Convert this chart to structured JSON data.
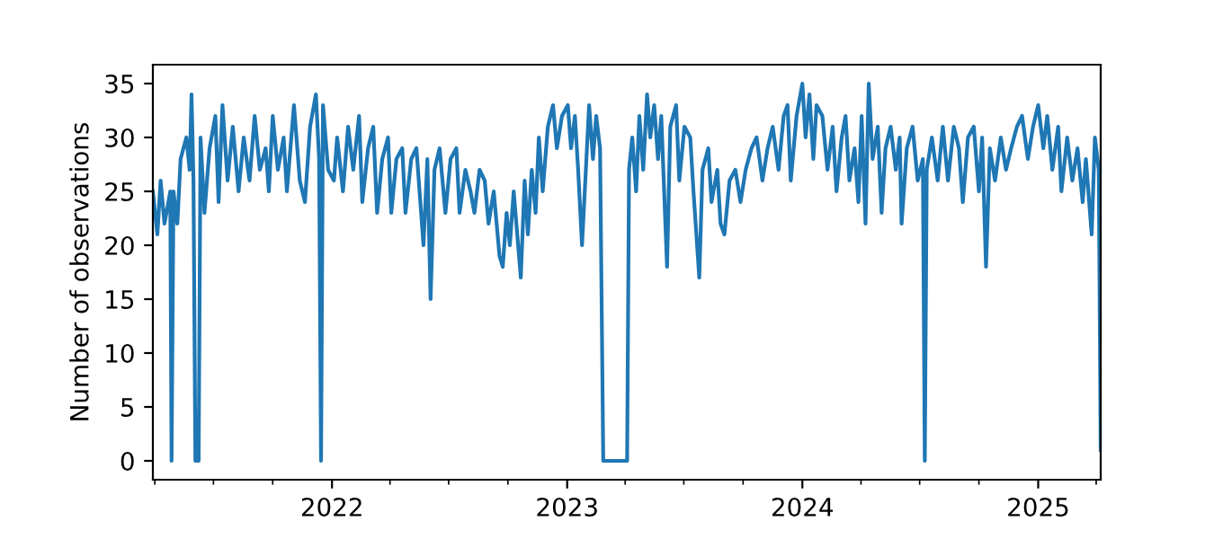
{
  "chart_data": {
    "type": "line",
    "ylabel": "Number of observations",
    "x": [
      "2021-03-29",
      "2021-04-05",
      "2021-04-10",
      "2021-04-16",
      "2021-04-25",
      "2021-04-27",
      "2021-04-30",
      "2021-05-06",
      "2021-05-11",
      "2021-05-20",
      "2021-05-25",
      "2021-05-28",
      "2021-05-31",
      "2021-06-03",
      "2021-06-08",
      "2021-06-11",
      "2021-06-17",
      "2021-06-25",
      "2021-07-04",
      "2021-07-09",
      "2021-07-15",
      "2021-07-23",
      "2021-07-31",
      "2021-08-09",
      "2021-08-17",
      "2021-08-26",
      "2021-09-03",
      "2021-09-11",
      "2021-09-20",
      "2021-09-25",
      "2021-10-01",
      "2021-10-09",
      "2021-10-18",
      "2021-10-23",
      "2021-11-03",
      "2021-11-12",
      "2021-11-20",
      "2021-11-28",
      "2021-12-07",
      "2021-12-12",
      "2021-12-15",
      "2021-12-18",
      "2021-12-26",
      "2022-01-04",
      "2022-01-09",
      "2022-01-18",
      "2022-01-26",
      "2022-02-03",
      "2022-02-12",
      "2022-02-17",
      "2022-02-26",
      "2022-03-06",
      "2022-03-12",
      "2022-03-20",
      "2022-03-29",
      "2022-04-03",
      "2022-04-11",
      "2022-04-20",
      "2022-04-25",
      "2022-05-04",
      "2022-05-12",
      "2022-05-23",
      "2022-05-29",
      "2022-06-03",
      "2022-06-09",
      "2022-06-17",
      "2022-06-26",
      "2022-07-04",
      "2022-07-13",
      "2022-07-18",
      "2022-07-27",
      "2022-08-04",
      "2022-08-10",
      "2022-08-18",
      "2022-08-26",
      "2022-09-01",
      "2022-09-09",
      "2022-09-18",
      "2022-09-23",
      "2022-09-29",
      "2022-10-04",
      "2022-10-10",
      "2022-10-21",
      "2022-10-27",
      "2022-11-01",
      "2022-11-07",
      "2022-11-13",
      "2022-11-18",
      "2022-11-24",
      "2022-12-02",
      "2022-12-10",
      "2022-12-16",
      "2022-12-24",
      "2023-01-02",
      "2023-01-07",
      "2023-01-13",
      "2023-01-18",
      "2023-01-24",
      "2023-01-30",
      "2023-02-04",
      "2023-02-10",
      "2023-02-15",
      "2023-02-21",
      "2023-02-26",
      "2023-04-04",
      "2023-04-07",
      "2023-04-12",
      "2023-04-18",
      "2023-04-23",
      "2023-04-29",
      "2023-05-05",
      "2023-05-10",
      "2023-05-16",
      "2023-05-22",
      "2023-05-27",
      "2023-06-05",
      "2023-06-10",
      "2023-06-19",
      "2023-06-24",
      "2023-07-02",
      "2023-07-11",
      "2023-07-16",
      "2023-07-25",
      "2023-07-30",
      "2023-08-08",
      "2023-08-13",
      "2023-08-22",
      "2023-08-27",
      "2023-09-02",
      "2023-09-10",
      "2023-09-19",
      "2023-09-27",
      "2023-10-05",
      "2023-10-14",
      "2023-10-22",
      "2023-10-31",
      "2023-11-08",
      "2023-11-16",
      "2023-11-25",
      "2023-12-03",
      "2023-12-09",
      "2023-12-14",
      "2023-12-23",
      "2024-01-01",
      "2024-01-06",
      "2024-01-12",
      "2024-01-18",
      "2024-01-23",
      "2024-02-01",
      "2024-02-09",
      "2024-02-17",
      "2024-02-23",
      "2024-03-02",
      "2024-03-08",
      "2024-03-14",
      "2024-03-22",
      "2024-03-28",
      "2024-04-02",
      "2024-04-08",
      "2024-04-13",
      "2024-04-19",
      "2024-04-27",
      "2024-05-03",
      "2024-05-09",
      "2024-05-17",
      "2024-05-25",
      "2024-05-31",
      "2024-06-03",
      "2024-06-11",
      "2024-06-20",
      "2024-06-28",
      "2024-07-06",
      "2024-07-09",
      "2024-07-12",
      "2024-07-20",
      "2024-07-29",
      "2024-08-06",
      "2024-08-14",
      "2024-08-23",
      "2024-08-31",
      "2024-09-06",
      "2024-09-14",
      "2024-09-23",
      "2024-10-01",
      "2024-10-06",
      "2024-10-12",
      "2024-10-18",
      "2024-10-26",
      "2024-11-04",
      "2024-11-12",
      "2024-11-20",
      "2024-11-29",
      "2024-12-07",
      "2024-12-16",
      "2024-12-24",
      "2025-01-01",
      "2025-01-09",
      "2025-01-15",
      "2025-01-23",
      "2025-02-01",
      "2025-02-06",
      "2025-02-15",
      "2025-02-23",
      "2025-03-03",
      "2025-03-11",
      "2025-03-16",
      "2025-03-25",
      "2025-03-30",
      "2025-04-05",
      "2025-04-08"
    ],
    "series": [
      {
        "color": "#1f77b4",
        "values": [
          25,
          21,
          26,
          22,
          25,
          0,
          25,
          22,
          28,
          30,
          27,
          34,
          26,
          0,
          0,
          30,
          23,
          29,
          32,
          24,
          33,
          26,
          31,
          25,
          30,
          26,
          32,
          27,
          29,
          25,
          32,
          27,
          30,
          25,
          33,
          26,
          24,
          31,
          34,
          28,
          0,
          33,
          27,
          26,
          30,
          25,
          31,
          27,
          32,
          24,
          29,
          31,
          23,
          28,
          30,
          23,
          28,
          29,
          23,
          28,
          29,
          20,
          28,
          15,
          27,
          29,
          23,
          28,
          29,
          23,
          27,
          25,
          23,
          27,
          26,
          22,
          25,
          19,
          18,
          23,
          20,
          25,
          17,
          26,
          21,
          27,
          23,
          30,
          25,
          31,
          33,
          29,
          32,
          33,
          29,
          32,
          27,
          20,
          27,
          33,
          28,
          32,
          29,
          0,
          0,
          27,
          30,
          25,
          32,
          27,
          34,
          30,
          33,
          28,
          32,
          18,
          31,
          33,
          26,
          31,
          30,
          25,
          17,
          27,
          29,
          24,
          27,
          22,
          21,
          26,
          27,
          24,
          27,
          29,
          30,
          26,
          29,
          31,
          27,
          32,
          33,
          26,
          32,
          35,
          30,
          34,
          28,
          33,
          32,
          27,
          31,
          25,
          30,
          32,
          26,
          29,
          24,
          32,
          22,
          35,
          28,
          31,
          23,
          29,
          31,
          27,
          30,
          22,
          29,
          31,
          26,
          28,
          0,
          27,
          30,
          26,
          31,
          26,
          31,
          29,
          24,
          30,
          31,
          25,
          30,
          18,
          29,
          26,
          30,
          27,
          29,
          31,
          32,
          28,
          31,
          33,
          29,
          32,
          27,
          31,
          25,
          30,
          26,
          29,
          24,
          28,
          21,
          30,
          27,
          1
        ]
      }
    ],
    "xlim": [
      "2021-03-29",
      "2025-04-08"
    ],
    "xticks": [
      {
        "value": "2021-04-01",
        "label": null
      },
      {
        "value": "2021-07-01",
        "label": null
      },
      {
        "value": "2021-10-01",
        "label": null
      },
      {
        "value": "2022-01-01",
        "label": "2022"
      },
      {
        "value": "2022-04-01",
        "label": null
      },
      {
        "value": "2022-07-01",
        "label": null
      },
      {
        "value": "2022-10-01",
        "label": null
      },
      {
        "value": "2023-01-01",
        "label": "2023"
      },
      {
        "value": "2023-04-01",
        "label": null
      },
      {
        "value": "2023-07-01",
        "label": null
      },
      {
        "value": "2023-10-01",
        "label": null
      },
      {
        "value": "2024-01-01",
        "label": "2024"
      },
      {
        "value": "2024-04-01",
        "label": null
      },
      {
        "value": "2024-07-01",
        "label": null
      },
      {
        "value": "2024-10-01",
        "label": null
      },
      {
        "value": "2025-01-01",
        "label": "2025"
      },
      {
        "value": "2025-04-01",
        "label": null
      }
    ],
    "ylim": [
      -1.75,
      36.75
    ],
    "yticks": [
      0,
      5,
      10,
      15,
      20,
      25,
      30,
      35
    ],
    "grid": false,
    "legend": false
  }
}
